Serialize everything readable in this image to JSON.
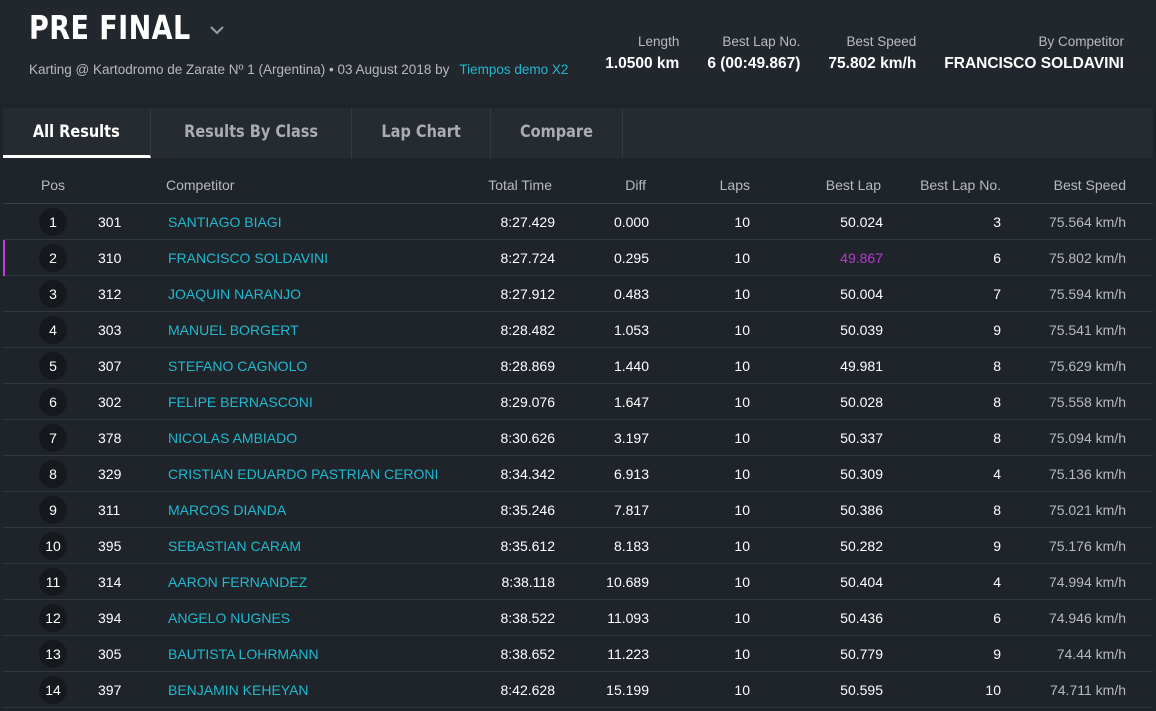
{
  "header": {
    "title": "PRE FINAL",
    "subtitle_prefix": "Karting @ Kartodromo de Zarate Nº 1 (Argentina) • 03 August 2018 by",
    "subtitle_link": "Tiempos demo X2",
    "stats": [
      {
        "label": "Length",
        "value": "1.0500 km"
      },
      {
        "label": "Best Lap No.",
        "value": "6 (00:49.867)"
      },
      {
        "label": "Best Speed",
        "value": "75.802 km/h"
      },
      {
        "label": "By Competitor",
        "value": "FRANCISCO SOLDAVINI"
      }
    ]
  },
  "tabs": [
    {
      "label": "All Results",
      "active": true
    },
    {
      "label": "Results By Class",
      "active": false
    },
    {
      "label": "Lap Chart",
      "active": false
    },
    {
      "label": "Compare",
      "active": false
    }
  ],
  "columns": {
    "pos": "Pos",
    "competitor": "Competitor",
    "total_time": "Total Time",
    "diff": "Diff",
    "laps": "Laps",
    "best_lap": "Best Lap",
    "best_lap_no": "Best Lap No.",
    "best_speed": "Best Speed"
  },
  "highlight_color": "#b83ad0",
  "link_color": "#1fb9cf",
  "rows": [
    {
      "pos": "1",
      "num": "301",
      "name": "SANTIAGO BIAGI",
      "total": "8:27.429",
      "diff": "0.000",
      "laps": "10",
      "best": "50.024",
      "best_no": "3",
      "speed": "75.564 km/h"
    },
    {
      "pos": "2",
      "num": "310",
      "name": "FRANCISCO SOLDAVINI",
      "total": "8:27.724",
      "diff": "0.295",
      "laps": "10",
      "best": "49.867",
      "best_no": "6",
      "speed": "75.802 km/h"
    },
    {
      "pos": "3",
      "num": "312",
      "name": "JOAQUIN NARANJO",
      "total": "8:27.912",
      "diff": "0.483",
      "laps": "10",
      "best": "50.004",
      "best_no": "7",
      "speed": "75.594 km/h"
    },
    {
      "pos": "4",
      "num": "303",
      "name": "MANUEL BORGERT",
      "total": "8:28.482",
      "diff": "1.053",
      "laps": "10",
      "best": "50.039",
      "best_no": "9",
      "speed": "75.541 km/h"
    },
    {
      "pos": "5",
      "num": "307",
      "name": "STEFANO CAGNOLO",
      "total": "8:28.869",
      "diff": "1.440",
      "laps": "10",
      "best": "49.981",
      "best_no": "8",
      "speed": "75.629 km/h"
    },
    {
      "pos": "6",
      "num": "302",
      "name": "FELIPE BERNASCONI",
      "total": "8:29.076",
      "diff": "1.647",
      "laps": "10",
      "best": "50.028",
      "best_no": "8",
      "speed": "75.558 km/h"
    },
    {
      "pos": "7",
      "num": "378",
      "name": "NICOLAS AMBIADO",
      "total": "8:30.626",
      "diff": "3.197",
      "laps": "10",
      "best": "50.337",
      "best_no": "8",
      "speed": "75.094 km/h"
    },
    {
      "pos": "8",
      "num": "329",
      "name": "CRISTIAN EDUARDO PASTRIAN CERONI",
      "total": "8:34.342",
      "diff": "6.913",
      "laps": "10",
      "best": "50.309",
      "best_no": "4",
      "speed": "75.136 km/h"
    },
    {
      "pos": "9",
      "num": "311",
      "name": "MARCOS DIANDA",
      "total": "8:35.246",
      "diff": "7.817",
      "laps": "10",
      "best": "50.386",
      "best_no": "8",
      "speed": "75.021 km/h"
    },
    {
      "pos": "10",
      "num": "395",
      "name": "SEBASTIAN CARAM",
      "total": "8:35.612",
      "diff": "8.183",
      "laps": "10",
      "best": "50.282",
      "best_no": "9",
      "speed": "75.176 km/h"
    },
    {
      "pos": "11",
      "num": "314",
      "name": "AARON FERNANDEZ",
      "total": "8:38.118",
      "diff": "10.689",
      "laps": "10",
      "best": "50.404",
      "best_no": "4",
      "speed": "74.994 km/h"
    },
    {
      "pos": "12",
      "num": "394",
      "name": "ANGELO NUGNES",
      "total": "8:38.522",
      "diff": "11.093",
      "laps": "10",
      "best": "50.436",
      "best_no": "6",
      "speed": "74.946 km/h"
    },
    {
      "pos": "13",
      "num": "305",
      "name": "BAUTISTA LOHRMANN",
      "total": "8:38.652",
      "diff": "11.223",
      "laps": "10",
      "best": "50.779",
      "best_no": "9",
      "speed": "74.44 km/h"
    },
    {
      "pos": "14",
      "num": "397",
      "name": "BENJAMIN KEHEYAN",
      "total": "8:42.628",
      "diff": "15.199",
      "laps": "10",
      "best": "50.595",
      "best_no": "10",
      "speed": "74.711 km/h"
    }
  ]
}
